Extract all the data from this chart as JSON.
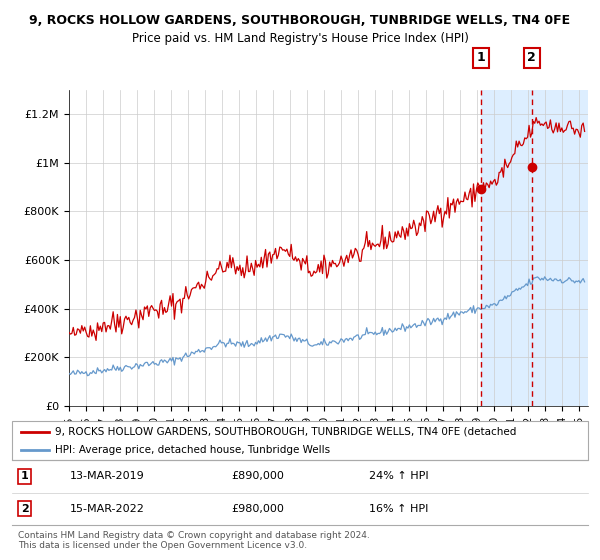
{
  "title_line1": "9, ROCKS HOLLOW GARDENS, SOUTHBOROUGH, TUNBRIDGE WELLS, TN4 0FE",
  "title_line2": "Price paid vs. HM Land Registry's House Price Index (HPI)",
  "legend_line1": "9, ROCKS HOLLOW GARDENS, SOUTHBOROUGH, TUNBRIDGE WELLS, TN4 0FE (detached",
  "legend_line2": "HPI: Average price, detached house, Tunbridge Wells",
  "transaction1_date": "13-MAR-2019",
  "transaction1_price": "£890,000",
  "transaction1_hpi": "24% ↑ HPI",
  "transaction2_date": "15-MAR-2022",
  "transaction2_price": "£980,000",
  "transaction2_hpi": "16% ↑ HPI",
  "footer": "Contains HM Land Registry data © Crown copyright and database right 2024.\nThis data is licensed under the Open Government Licence v3.0.",
  "red_color": "#cc0000",
  "blue_color": "#6699cc",
  "highlight_bg": "#ddeeff",
  "ylim": [
    0,
    1300000
  ],
  "ytick_labels": [
    "£0",
    "£200K",
    "£400K",
    "£600K",
    "£800K",
    "£1M",
    "£1.2M"
  ],
  "ytick_values": [
    0,
    200000,
    400000,
    600000,
    800000,
    1000000,
    1200000
  ],
  "sale1_year": 2019.2,
  "sale1_price": 890000,
  "sale2_year": 2022.2,
  "sale2_price": 980000
}
